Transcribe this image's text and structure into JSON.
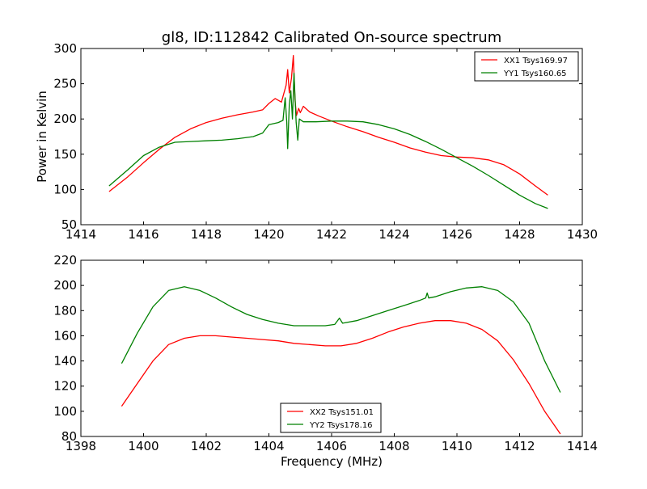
{
  "title": "gl8, ID:112842 Calibrated On-source spectrum",
  "chart_data": [
    {
      "type": "line",
      "title": "gl8, ID:112842 Calibrated On-source spectrum",
      "xlabel": "",
      "ylabel": "Power in Kelvin",
      "xlim": [
        1414,
        1430
      ],
      "ylim": [
        50,
        300
      ],
      "xticks": [
        1414,
        1416,
        1418,
        1420,
        1422,
        1424,
        1426,
        1428,
        1430
      ],
      "yticks": [
        50,
        100,
        150,
        200,
        250,
        300
      ],
      "legend_position": "top-right",
      "grid": false,
      "series": [
        {
          "name": "XX1 Tsys169.97",
          "color": "#ff0000",
          "points": [
            [
              1414.9,
              97
            ],
            [
              1415.5,
              118
            ],
            [
              1416,
              138
            ],
            [
              1416.5,
              157
            ],
            [
              1417,
              174
            ],
            [
              1417.5,
              186
            ],
            [
              1418,
              195
            ],
            [
              1418.5,
              201
            ],
            [
              1419,
              206
            ],
            [
              1419.5,
              210
            ],
            [
              1419.8,
              213
            ],
            [
              1420.0,
              222
            ],
            [
              1420.2,
              229
            ],
            [
              1420.4,
              224
            ],
            [
              1420.55,
              248
            ],
            [
              1420.6,
              270
            ],
            [
              1420.65,
              237
            ],
            [
              1420.72,
              258
            ],
            [
              1420.78,
              290
            ],
            [
              1420.83,
              228
            ],
            [
              1420.88,
              205
            ],
            [
              1420.95,
              215
            ],
            [
              1421.0,
              209
            ],
            [
              1421.1,
              218
            ],
            [
              1421.3,
              210
            ],
            [
              1421.6,
              204
            ],
            [
              1422,
              197
            ],
            [
              1422.5,
              189
            ],
            [
              1423,
              182
            ],
            [
              1423.5,
              174
            ],
            [
              1424,
              167
            ],
            [
              1424.5,
              159
            ],
            [
              1425,
              153
            ],
            [
              1425.5,
              148
            ],
            [
              1426,
              146
            ],
            [
              1426.5,
              145
            ],
            [
              1427,
              142
            ],
            [
              1427.5,
              135
            ],
            [
              1428,
              122
            ],
            [
              1428.5,
              105
            ],
            [
              1428.9,
              92
            ]
          ]
        },
        {
          "name": "YY1 Tsys160.65",
          "color": "#008000",
          "points": [
            [
              1414.9,
              105
            ],
            [
              1415.5,
              128
            ],
            [
              1416,
              148
            ],
            [
              1416.5,
              160
            ],
            [
              1417,
              167
            ],
            [
              1417.5,
              168
            ],
            [
              1418,
              169
            ],
            [
              1418.5,
              170
            ],
            [
              1419,
              172
            ],
            [
              1419.5,
              175
            ],
            [
              1419.8,
              180
            ],
            [
              1420.0,
              192
            ],
            [
              1420.3,
              195
            ],
            [
              1420.45,
              198
            ],
            [
              1420.52,
              230
            ],
            [
              1420.57,
              195
            ],
            [
              1420.6,
              158
            ],
            [
              1420.65,
              220
            ],
            [
              1420.7,
              240
            ],
            [
              1420.75,
              200
            ],
            [
              1420.8,
              265
            ],
            [
              1420.87,
              195
            ],
            [
              1420.92,
              170
            ],
            [
              1420.97,
              200
            ],
            [
              1421.1,
              196
            ],
            [
              1421.5,
              196
            ],
            [
              1422,
              197
            ],
            [
              1422.5,
              197
            ],
            [
              1423,
              196
            ],
            [
              1423.5,
              192
            ],
            [
              1424,
              186
            ],
            [
              1424.5,
              178
            ],
            [
              1425,
              168
            ],
            [
              1425.5,
              157
            ],
            [
              1426,
              145
            ],
            [
              1426.5,
              133
            ],
            [
              1427,
              120
            ],
            [
              1427.5,
              106
            ],
            [
              1428,
              92
            ],
            [
              1428.5,
              80
            ],
            [
              1428.9,
              73
            ]
          ]
        }
      ]
    },
    {
      "type": "line",
      "title": "",
      "xlabel": "Frequency (MHz)",
      "ylabel": "",
      "xlim": [
        1398,
        1414
      ],
      "ylim": [
        80,
        220
      ],
      "xticks": [
        1398,
        1400,
        1402,
        1404,
        1406,
        1408,
        1410,
        1412,
        1414
      ],
      "yticks": [
        80,
        100,
        120,
        140,
        160,
        180,
        200,
        220
      ],
      "legend_position": "bottom-center",
      "grid": false,
      "series": [
        {
          "name": "XX2 Tsys151.01",
          "color": "#ff0000",
          "points": [
            [
              1399.3,
              104
            ],
            [
              1399.8,
              122
            ],
            [
              1400.3,
              140
            ],
            [
              1400.8,
              153
            ],
            [
              1401.3,
              158
            ],
            [
              1401.8,
              160
            ],
            [
              1402.3,
              160
            ],
            [
              1402.8,
              159
            ],
            [
              1403.3,
              158
            ],
            [
              1403.8,
              157
            ],
            [
              1404.3,
              156
            ],
            [
              1404.8,
              154
            ],
            [
              1405.3,
              153
            ],
            [
              1405.8,
              152
            ],
            [
              1406.3,
              152
            ],
            [
              1406.8,
              154
            ],
            [
              1407.3,
              158
            ],
            [
              1407.8,
              163
            ],
            [
              1408.3,
              167
            ],
            [
              1408.8,
              170
            ],
            [
              1409.3,
              172
            ],
            [
              1409.8,
              172
            ],
            [
              1410.3,
              170
            ],
            [
              1410.8,
              165
            ],
            [
              1411.3,
              156
            ],
            [
              1411.8,
              141
            ],
            [
              1412.3,
              122
            ],
            [
              1412.8,
              100
            ],
            [
              1413.3,
              82
            ]
          ]
        },
        {
          "name": "YY2 Tsys178.16",
          "color": "#008000",
          "points": [
            [
              1399.3,
              138
            ],
            [
              1399.8,
              162
            ],
            [
              1400.3,
              183
            ],
            [
              1400.8,
              196
            ],
            [
              1401.3,
              199
            ],
            [
              1401.8,
              196
            ],
            [
              1402.3,
              190
            ],
            [
              1402.8,
              183
            ],
            [
              1403.3,
              177
            ],
            [
              1403.8,
              173
            ],
            [
              1404.3,
              170
            ],
            [
              1404.8,
              168
            ],
            [
              1405.3,
              168
            ],
            [
              1405.8,
              168
            ],
            [
              1406.1,
              169
            ],
            [
              1406.25,
              174
            ],
            [
              1406.35,
              170
            ],
            [
              1406.8,
              172
            ],
            [
              1407.3,
              176
            ],
            [
              1407.8,
              180
            ],
            [
              1408.3,
              184
            ],
            [
              1408.8,
              188
            ],
            [
              1409.0,
              190
            ],
            [
              1409.05,
              194
            ],
            [
              1409.1,
              190
            ],
            [
              1409.3,
              191
            ],
            [
              1409.8,
              195
            ],
            [
              1410.3,
              198
            ],
            [
              1410.8,
              199
            ],
            [
              1411.3,
              196
            ],
            [
              1411.8,
              187
            ],
            [
              1412.3,
              170
            ],
            [
              1412.8,
              140
            ],
            [
              1413.3,
              115
            ]
          ]
        }
      ]
    }
  ]
}
